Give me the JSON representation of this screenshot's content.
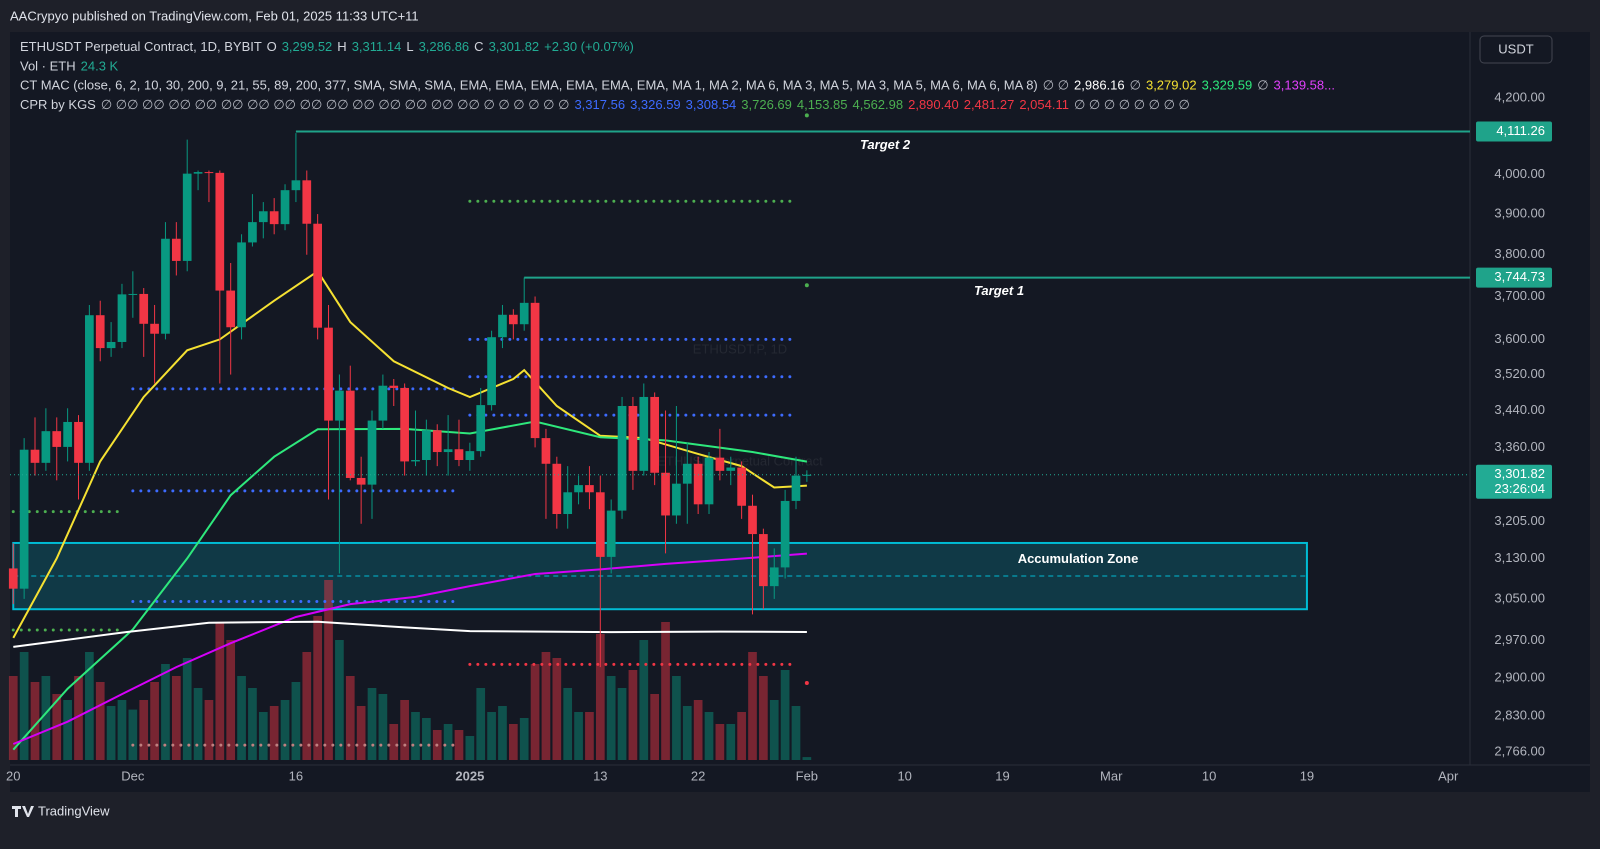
{
  "page": {
    "header": "AACrypyo published on TradingView.com, Feb 01, 2025 11:33 UTC+11",
    "footer": "TradingView",
    "currency_button": "USDT"
  },
  "chart_data": {
    "type": "candlestick",
    "watermark": "ETHUSDT.P, 1D",
    "watermark_subtitle": "ETHUSD Perpetual Contract",
    "legend": [
      [
        {
          "text": "ETHUSDT Perpetual Contract, 1D, BYBIT",
          "color": "#d1d4dc"
        },
        {
          "text": "O",
          "color": "#d1d4dc"
        },
        {
          "text": "3,299.52",
          "color": "#22ab94"
        },
        {
          "text": "H",
          "color": "#d1d4dc"
        },
        {
          "text": "3,311.14",
          "color": "#22ab94"
        },
        {
          "text": "L",
          "color": "#d1d4dc"
        },
        {
          "text": "3,286.86",
          "color": "#22ab94"
        },
        {
          "text": "C",
          "color": "#d1d4dc"
        },
        {
          "text": "3,301.82",
          "color": "#22ab94"
        },
        {
          "text": "+2.30 (+0.07%)",
          "color": "#22ab94"
        }
      ],
      [
        {
          "text": "Vol · ETH",
          "color": "#d1d4dc"
        },
        {
          "text": "24.3 K",
          "color": "#22ab94"
        }
      ],
      [
        {
          "text": "CT MAC (close, 6, 2, 10, 30, 200, 9, 21, 55, 89, 200, 377, SMA, SMA, SMA, EMA, EMA, EMA, EMA, EMA, EMA, MA 1, MA 2, MA 6, MA 3, MA 5, MA 3, MA 5, MA 6, MA 6, MA 8)",
          "color": "#d1d4dc"
        },
        {
          "text": "∅ ∅",
          "color": "#b2b5be"
        },
        {
          "text": "2,986.16",
          "color": "#ffffff"
        },
        {
          "text": "∅",
          "color": "#b2b5be"
        },
        {
          "text": "3,279.02",
          "color": "#f5e132"
        },
        {
          "text": "3,329.59",
          "color": "#2ee87c"
        },
        {
          "text": "∅",
          "color": "#b2b5be"
        },
        {
          "text": "3,139.58...",
          "color": "#e040fb"
        }
      ],
      [
        {
          "text": "CPR by KGS",
          "color": "#d1d4dc"
        },
        {
          "text": "∅ ∅∅ ∅∅ ∅∅ ∅∅ ∅∅ ∅∅ ∅∅ ∅∅ ∅∅ ∅∅ ∅∅ ∅∅ ∅∅ ∅∅ ∅ ∅ ∅ ∅ ∅ ∅",
          "color": "#b2b5be"
        },
        {
          "text": "3,317.56",
          "color": "#3d6bff"
        },
        {
          "text": "3,326.59",
          "color": "#3d6bff"
        },
        {
          "text": "3,308.54",
          "color": "#3d6bff"
        },
        {
          "text": "3,726.69",
          "color": "#4caf50"
        },
        {
          "text": "4,153.85",
          "color": "#4caf50"
        },
        {
          "text": "4,562.98",
          "color": "#4caf50"
        },
        {
          "text": "2,890.40",
          "color": "#f23645"
        },
        {
          "text": "2,481.27",
          "color": "#f23645"
        },
        {
          "text": "2,054.11",
          "color": "#f23645"
        },
        {
          "text": "∅ ∅ ∅ ∅ ∅ ∅ ∅ ∅",
          "color": "#b2b5be"
        }
      ]
    ],
    "log_scale": true,
    "ylim": [
      2743,
      4381
    ],
    "yticks": [
      {
        "value": 4200,
        "label": "4,200.00"
      },
      {
        "value": 4000,
        "label": "4,000.00"
      },
      {
        "value": 3900,
        "label": "3,900.00"
      },
      {
        "value": 3800,
        "label": "3,800.00"
      },
      {
        "value": 3700,
        "label": "3,700.00"
      },
      {
        "value": 3600,
        "label": "3,600.00"
      },
      {
        "value": 3520,
        "label": "3,520.00"
      },
      {
        "value": 3440,
        "label": "3,440.00"
      },
      {
        "value": 3360,
        "label": "3,360.00"
      },
      {
        "value": 3205,
        "label": "3,205.00"
      },
      {
        "value": 3130,
        "label": "3,130.00"
      },
      {
        "value": 3050,
        "label": "3,050.00"
      },
      {
        "value": 2970,
        "label": "2,970.00"
      },
      {
        "value": 2900,
        "label": "2,900.00"
      },
      {
        "value": 2830,
        "label": "2,830.00"
      },
      {
        "value": 2766,
        "label": "2,766.00"
      }
    ],
    "xlim": [
      -0.3,
      134
    ],
    "xticks": [
      {
        "value": 0,
        "label": "20"
      },
      {
        "value": 11,
        "label": "Dec"
      },
      {
        "value": 26,
        "label": "16"
      },
      {
        "value": 42,
        "label": "2025"
      },
      {
        "value": 54,
        "label": "13"
      },
      {
        "value": 63,
        "label": "22"
      },
      {
        "value": 73,
        "label": "Feb"
      },
      {
        "value": 82,
        "label": "10"
      },
      {
        "value": 91,
        "label": "19"
      },
      {
        "value": 101,
        "label": "Mar"
      },
      {
        "value": 110,
        "label": "10"
      },
      {
        "value": 119,
        "label": "19"
      },
      {
        "value": 132,
        "label": "Apr"
      }
    ],
    "up_color": "#089981",
    "down_color": "#f23645",
    "candles": [
      [
        3110,
        3160,
        3040,
        3070
      ],
      [
        3070,
        3380,
        3050,
        3355
      ],
      [
        3355,
        3425,
        3300,
        3327
      ],
      [
        3327,
        3445,
        3310,
        3395
      ],
      [
        3395,
        3425,
        3290,
        3361
      ],
      [
        3361,
        3445,
        3330,
        3415
      ],
      [
        3415,
        3430,
        3250,
        3327
      ],
      [
        3327,
        3680,
        3310,
        3656
      ],
      [
        3656,
        3690,
        3550,
        3580
      ],
      [
        3580,
        3640,
        3560,
        3594
      ],
      [
        3594,
        3730,
        3580,
        3705
      ],
      [
        3705,
        3760,
        3650,
        3706
      ],
      [
        3706,
        3720,
        3560,
        3636
      ],
      [
        3636,
        3680,
        3500,
        3613
      ],
      [
        3613,
        3880,
        3600,
        3839
      ],
      [
        3839,
        3880,
        3750,
        3785
      ],
      [
        3785,
        4090,
        3760,
        4002
      ],
      [
        4002,
        4010,
        3960,
        4006
      ],
      [
        4006,
        4010,
        3930,
        4004
      ],
      [
        4004,
        4010,
        3500,
        3714
      ],
      [
        3714,
        3780,
        3520,
        3628
      ],
      [
        3628,
        3850,
        3600,
        3830
      ],
      [
        3830,
        3950,
        3820,
        3880
      ],
      [
        3880,
        3930,
        3840,
        3907
      ],
      [
        3907,
        3940,
        3850,
        3875
      ],
      [
        3875,
        3975,
        3860,
        3960
      ],
      [
        3960,
        4107,
        3930,
        3985
      ],
      [
        3985,
        4010,
        3800,
        3876
      ],
      [
        3876,
        3900,
        3600,
        3627
      ],
      [
        3627,
        3680,
        3250,
        3418
      ],
      [
        3418,
        3520,
        3100,
        3484
      ],
      [
        3484,
        3540,
        3290,
        3295
      ],
      [
        3295,
        3340,
        3200,
        3281
      ],
      [
        3281,
        3440,
        3210,
        3418
      ],
      [
        3418,
        3520,
        3400,
        3495
      ],
      [
        3495,
        3510,
        3450,
        3490
      ],
      [
        3490,
        3500,
        3300,
        3330
      ],
      [
        3330,
        3440,
        3320,
        3333
      ],
      [
        3333,
        3420,
        3300,
        3397
      ],
      [
        3397,
        3410,
        3320,
        3350
      ],
      [
        3350,
        3430,
        3300,
        3356
      ],
      [
        3356,
        3420,
        3320,
        3333
      ],
      [
        3333,
        3370,
        3310,
        3352
      ],
      [
        3352,
        3490,
        3340,
        3452
      ],
      [
        3452,
        3620,
        3440,
        3605
      ],
      [
        3605,
        3680,
        3580,
        3657
      ],
      [
        3657,
        3670,
        3600,
        3635
      ],
      [
        3635,
        3745,
        3620,
        3685
      ],
      [
        3685,
        3700,
        3360,
        3380
      ],
      [
        3380,
        3400,
        3210,
        3325
      ],
      [
        3325,
        3340,
        3190,
        3220
      ],
      [
        3220,
        3320,
        3190,
        3265
      ],
      [
        3265,
        3300,
        3240,
        3280
      ],
      [
        3280,
        3320,
        3230,
        3265
      ],
      [
        3265,
        3300,
        2920,
        3133
      ],
      [
        3133,
        3250,
        3100,
        3227
      ],
      [
        3227,
        3470,
        3210,
        3450
      ],
      [
        3450,
        3470,
        3270,
        3310
      ],
      [
        3310,
        3500,
        3300,
        3470
      ],
      [
        3470,
        3480,
        3280,
        3306
      ],
      [
        3306,
        3440,
        3140,
        3217
      ],
      [
        3217,
        3450,
        3200,
        3283
      ],
      [
        3283,
        3370,
        3200,
        3325
      ],
      [
        3325,
        3340,
        3220,
        3240
      ],
      [
        3240,
        3350,
        3220,
        3338
      ],
      [
        3338,
        3400,
        3290,
        3310
      ],
      [
        3310,
        3340,
        3280,
        3317
      ],
      [
        3317,
        3330,
        3210,
        3237
      ],
      [
        3237,
        3260,
        3020,
        3179
      ],
      [
        3179,
        3190,
        3030,
        3075
      ],
      [
        3075,
        3150,
        3050,
        3112
      ],
      [
        3112,
        3270,
        3090,
        3247
      ],
      [
        3247,
        3340,
        3230,
        3300
      ],
      [
        3299.52,
        3311.14,
        3286.86,
        3301.82
      ]
    ],
    "volume": [
      700,
      900,
      650,
      700,
      550,
      500,
      700,
      900,
      650,
      450,
      500,
      420,
      500,
      650,
      800,
      700,
      850,
      600,
      500,
      1150,
      1000,
      700,
      600,
      400,
      450,
      500,
      650,
      900,
      1200,
      1500,
      1000,
      700,
      450,
      600,
      550,
      300,
      500,
      400,
      350,
      250,
      300,
      250,
      200,
      600,
      400,
      450,
      300,
      350,
      800,
      900,
      850,
      600,
      400,
      400,
      1050,
      700,
      600,
      750,
      1000,
      550,
      1150,
      700,
      450,
      500,
      400,
      300,
      300,
      400,
      900,
      700,
      500,
      750,
      450,
      24.3
    ],
    "lines": [
      {
        "color": "#f5e132",
        "x": [
          0,
          4,
          8,
          12,
          16,
          19,
          24,
          28,
          31,
          35,
          40,
          42,
          46,
          47,
          50,
          54,
          58,
          63,
          67,
          70,
          73
        ],
        "values": [
          2975,
          3130,
          3330,
          3470,
          3575,
          3600,
          3690,
          3760,
          3640,
          3550,
          3490,
          3470,
          3510,
          3530,
          3450,
          3385,
          3380,
          3346,
          3320,
          3275,
          3279.02
        ]
      },
      {
        "color": "#2ee87c",
        "x": [
          0,
          5,
          11,
          16,
          20,
          24,
          28,
          36,
          42,
          48,
          54,
          60,
          68,
          73
        ],
        "values": [
          2770,
          2880,
          2991,
          3130,
          3259,
          3340,
          3399,
          3400,
          3390,
          3416,
          3382,
          3375,
          3350,
          3329.59
        ]
      },
      {
        "color": "#d500f9",
        "x": [
          0,
          5,
          10,
          15,
          20,
          26,
          31,
          37,
          42,
          48,
          54,
          60,
          66,
          73
        ],
        "values": [
          2780,
          2820,
          2870,
          2920,
          2965,
          3015,
          3040,
          3054,
          3075,
          3099,
          3108,
          3119,
          3128,
          3139.58
        ]
      },
      {
        "color": "#ffffff",
        "x": [
          0,
          10,
          18,
          28,
          36,
          42,
          55,
          65,
          73
        ],
        "values": [
          2958,
          2985,
          3004,
          3006,
          2995,
          2988,
          2986,
          2987,
          2986.16
        ]
      }
    ],
    "pivot_levels": [
      {
        "value": 3488,
        "from": 11,
        "to": 41,
        "color": "#3d6bff"
      },
      {
        "value": 3268,
        "from": 11,
        "to": 41,
        "color": "#3d6bff"
      },
      {
        "value": 3045,
        "from": 11,
        "to": 41,
        "color": "#3d6bff"
      },
      {
        "value": 2778,
        "from": 11,
        "to": 41,
        "color": "#c08080"
      },
      {
        "value": 3225,
        "from": 0,
        "to": 10,
        "color": "#4caf50"
      },
      {
        "value": 2990,
        "from": 0,
        "to": 10,
        "color": "#4caf50"
      },
      {
        "value": 3932,
        "from": 42,
        "to": 72,
        "color": "#4caf50"
      },
      {
        "value": 3600,
        "from": 42,
        "to": 72,
        "color": "#3d6bff"
      },
      {
        "value": 3515,
        "from": 42,
        "to": 72,
        "color": "#3d6bff"
      },
      {
        "value": 3430,
        "from": 42,
        "to": 72,
        "color": "#3d6bff"
      },
      {
        "value": 2925,
        "from": 42,
        "to": 72,
        "color": "#f23645"
      },
      {
        "value": 3726.69,
        "from": 73,
        "to": 73,
        "color": "#4caf50"
      },
      {
        "value": 4153.85,
        "from": 73,
        "to": 73,
        "color": "#4caf50"
      },
      {
        "value": 2890.4,
        "from": 73,
        "to": 73,
        "color": "#f23645"
      }
    ],
    "targets": [
      {
        "name": "Target 2",
        "value": 4111.26,
        "label": "4,111.26",
        "from": 26
      },
      {
        "name": "Target 1",
        "value": 3744.73,
        "label": "3,744.73",
        "from": 47
      }
    ],
    "current_price": {
      "value": 3301.82,
      "label": "3,301.82",
      "countdown": "23:26:04"
    },
    "zone": {
      "label": "Accumulation Zone",
      "top": 3161,
      "bottom": 3030,
      "mid": 3095,
      "from": 0,
      "to": 119
    }
  }
}
